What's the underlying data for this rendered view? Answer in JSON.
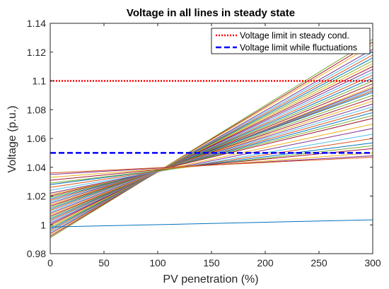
{
  "chart_data": {
    "type": "line",
    "title": "Voltage in all lines in steady state",
    "xlabel": "PV penetration (%)",
    "ylabel": "Voltage (p.u.)",
    "xlim": [
      0,
      300
    ],
    "ylim": [
      0.98,
      1.14
    ],
    "xticks": [
      "0",
      "50",
      "100",
      "150",
      "200",
      "250",
      "300"
    ],
    "yticks": [
      "0.98",
      "1",
      "1.02",
      "1.04",
      "1.06",
      "1.08",
      "1.1",
      "1.12",
      "1.14"
    ],
    "grid": false,
    "legend_position": "top-right",
    "reference_lines": [
      {
        "name": "Voltage limit in steady cond.",
        "y": 1.1,
        "color": "#ff0000",
        "style": "dotted"
      },
      {
        "name": "Voltage limit while fluctuations",
        "y": 1.05,
        "color": "#0000ff",
        "style": "dashed"
      }
    ],
    "series_x": [
      0,
      300
    ],
    "series": [
      {
        "values": [
          0.991,
          1.129
        ],
        "color": "#77ac30"
      },
      {
        "values": [
          0.992,
          1.127
        ],
        "color": "#a2142f"
      },
      {
        "values": [
          0.993,
          1.125
        ],
        "color": "#edb120"
      },
      {
        "values": [
          0.994,
          1.122
        ],
        "color": "#7e2f8e"
      },
      {
        "values": [
          0.995,
          1.12
        ],
        "color": "#4dbeee"
      },
      {
        "values": [
          0.996,
          1.118
        ],
        "color": "#d95319"
      },
      {
        "values": [
          0.997,
          1.116
        ],
        "color": "#0072bd"
      },
      {
        "values": [
          0.998,
          1.114
        ],
        "color": "#77ac30"
      },
      {
        "values": [
          0.999,
          1.112
        ],
        "color": "#edb120"
      },
      {
        "values": [
          1.0,
          1.11
        ],
        "color": "#a2142f"
      },
      {
        "values": [
          1.001,
          1.108
        ],
        "color": "#7e2f8e"
      },
      {
        "values": [
          1.002,
          1.106
        ],
        "color": "#4dbeee"
      },
      {
        "values": [
          1.003,
          1.104
        ],
        "color": "#d95319"
      },
      {
        "values": [
          1.004,
          1.102
        ],
        "color": "#0072bd"
      },
      {
        "values": [
          1.005,
          1.1
        ],
        "color": "#77ac30"
      },
      {
        "values": [
          1.006,
          1.098
        ],
        "color": "#a2142f"
      },
      {
        "values": [
          1.007,
          1.096
        ],
        "color": "#edb120"
      },
      {
        "values": [
          1.008,
          1.095
        ],
        "color": "#7e2f8e"
      },
      {
        "values": [
          1.009,
          1.094
        ],
        "color": "#4dbeee"
      },
      {
        "values": [
          1.01,
          1.093
        ],
        "color": "#d95319"
      },
      {
        "values": [
          1.011,
          1.092
        ],
        "color": "#0072bd"
      },
      {
        "values": [
          1.012,
          1.09
        ],
        "color": "#77ac30"
      },
      {
        "values": [
          1.013,
          1.088
        ],
        "color": "#a2142f"
      },
      {
        "values": [
          1.014,
          1.086
        ],
        "color": "#edb120"
      },
      {
        "values": [
          1.015,
          1.084
        ],
        "color": "#7e2f8e"
      },
      {
        "values": [
          1.016,
          1.082
        ],
        "color": "#4dbeee"
      },
      {
        "values": [
          1.017,
          1.08
        ],
        "color": "#d95319"
      },
      {
        "values": [
          1.018,
          1.078
        ],
        "color": "#0072bd"
      },
      {
        "values": [
          1.019,
          1.076
        ],
        "color": "#77ac30"
      },
      {
        "values": [
          1.02,
          1.074
        ],
        "color": "#a2142f"
      },
      {
        "values": [
          1.021,
          1.07
        ],
        "color": "#edb120"
      },
      {
        "values": [
          1.022,
          1.067
        ],
        "color": "#7e2f8e"
      },
      {
        "values": [
          1.024,
          1.063
        ],
        "color": "#4dbeee"
      },
      {
        "values": [
          1.026,
          1.06
        ],
        "color": "#d95319"
      },
      {
        "values": [
          1.028,
          1.057
        ],
        "color": "#0072bd"
      },
      {
        "values": [
          1.029,
          1.055
        ],
        "color": "#77ac30"
      },
      {
        "values": [
          1.031,
          1.053
        ],
        "color": "#a2142f"
      },
      {
        "values": [
          1.033,
          1.05
        ],
        "color": "#edb120"
      },
      {
        "values": [
          1.035,
          1.048
        ],
        "color": "#7e2f8e"
      },
      {
        "values": [
          1.036,
          1.047
        ],
        "color": "#d95319"
      },
      {
        "values": [
          0.9985,
          1.0035
        ],
        "color": "#0072bd"
      }
    ]
  }
}
